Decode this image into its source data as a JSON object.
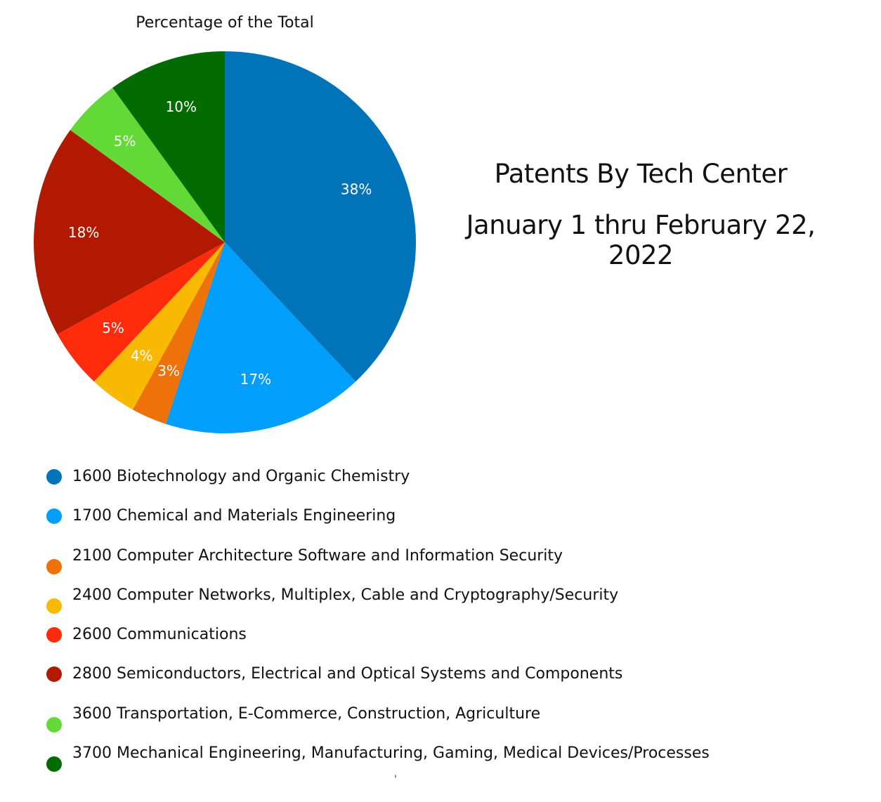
{
  "chart_data": {
    "type": "pie",
    "title": "Percentage of the Total",
    "slices": [
      {
        "label": "1600 Biotechnology and Organic Chemistry",
        "value": 38,
        "display": "38%",
        "color": "#0174b9"
      },
      {
        "label": "1700 Chemical and Materials Engineering",
        "value": 17,
        "display": "17%",
        "color": "#009ffd"
      },
      {
        "label": "2100 Computer Architecture Software and Information Security",
        "value": 3,
        "display": "3%",
        "color": "#ee7109"
      },
      {
        "label": "2400 Computer Networks, Multiplex, Cable and Cryptography/Security",
        "value": 4,
        "display": "4%",
        "color": "#f8b902"
      },
      {
        "label": "2600 Communications",
        "value": 5,
        "display": "5%",
        "color": "#ff2b0a"
      },
      {
        "label": "2800 Semiconductors, Electrical and Optical Systems and Components",
        "value": 18,
        "display": "18%",
        "color": "#b11a00"
      },
      {
        "label": "3600 Transportation, E-Commerce, Construction, Agriculture",
        "value": 5,
        "display": "5%",
        "color": "#62d936"
      },
      {
        "label": "3700 Mechanical Engineering, Manufacturing, Gaming, Medical Devices/Processes",
        "value": 10,
        "display": "10%",
        "color": "#026c03"
      }
    ],
    "legend_position": "bottom"
  },
  "side_title": {
    "line1": "Patents By Tech Center",
    "line2": "January 1 thru February 22, 2022"
  },
  "footer_mark": "'"
}
